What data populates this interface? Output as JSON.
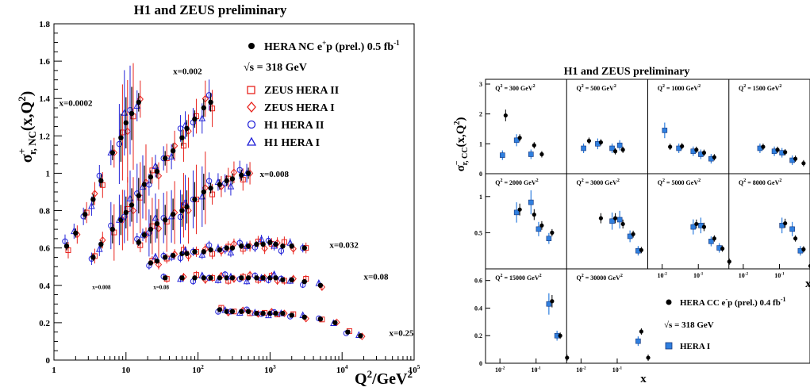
{
  "chart_data": [
    {
      "type": "scatter",
      "title": "H1 and ZEUS preliminary",
      "ylabel_main": "σ",
      "ylabel_sup": "+",
      "ylabel_sub": "r, NC",
      "ylabel_tail": "(x,Q",
      "ylabel_sup2": "2",
      "ylabel_close": ")",
      "xlabel_main": "Q",
      "xlabel_sup": "2",
      "xlabel_tail": "/GeV",
      "xlabel_sup2": "2",
      "xscale": "log",
      "xlim": [
        1,
        100000
      ],
      "ylim": [
        0,
        1.8
      ],
      "x_ticks": [
        {
          "v": 1,
          "b": "1",
          "e": ""
        },
        {
          "v": 10,
          "b": "10",
          "e": ""
        },
        {
          "v": 100,
          "b": "10",
          "e": "2"
        },
        {
          "v": 1000,
          "b": "10",
          "e": "3"
        },
        {
          "v": 10000,
          "b": "10",
          "e": "4"
        },
        {
          "v": 100000,
          "b": "10",
          "e": "5"
        }
      ],
      "y_ticks": [
        "0",
        "0.2",
        "0.4",
        "0.6",
        "0.8",
        "1",
        "1.2",
        "1.4",
        "1.6",
        "1.8"
      ],
      "legend_placement": "top-right",
      "legend": {
        "hera": {
          "pre": "HERA NC e",
          "sup": "+",
          "post": "p (prel.) 0.5 fb",
          "sup2": "-1"
        },
        "sqrt_s": "√s = 318 GeV",
        "zeus2": "ZEUS HERA II",
        "zeus1": "ZEUS HERA I",
        "h1_2": "H1 HERA II",
        "h1_1": "H1 HERA I"
      },
      "colors": {
        "hera": "#000000",
        "zeus": "#e8221c",
        "h1": "#2323d8"
      },
      "bin_labels": [
        {
          "text": "x=0.0002",
          "q2": 1.18,
          "y": 1.36
        },
        {
          "text": "x=0.002",
          "q2": 45,
          "y": 1.53
        },
        {
          "text": "x=0.008",
          "q2": 720,
          "y": 0.98
        },
        {
          "text": "x=0.032",
          "q2": 6700,
          "y": 0.6
        },
        {
          "text": "x=0.08",
          "q2": 20000,
          "y": 0.43
        },
        {
          "text": "x=0.25",
          "q2": 45000,
          "y": 0.13
        },
        {
          "text": "x=0.008",
          "q2": 3.4,
          "y": 0.38,
          "small": true
        },
        {
          "text": "x=0.08",
          "q2": 24,
          "y": 0.38,
          "small": true
        }
      ],
      "series": [
        {
          "name": "HERA NC e+p (prel.) 0.5 fb-1",
          "x_bin": "0.0002",
          "q2": [
            1.5,
            2,
            2.7,
            3.5,
            4.5,
            6.5,
            8.5,
            10,
            12,
            15
          ],
          "y": [
            0.61,
            0.68,
            0.78,
            0.86,
            0.96,
            1.11,
            1.19,
            1.27,
            1.32,
            1.38
          ]
        },
        {
          "name": "HERA NC e+p (prel.) 0.5 fb-1",
          "x_bin": "0.002",
          "q2": [
            3.5,
            4.5,
            6.5,
            8.5,
            10,
            12,
            15,
            18,
            22,
            27,
            35,
            45,
            60,
            70,
            90,
            120,
            150
          ],
          "y": [
            0.55,
            0.62,
            0.7,
            0.75,
            0.79,
            0.83,
            0.88,
            0.94,
            0.98,
            1.01,
            1.08,
            1.12,
            1.19,
            1.24,
            1.29,
            1.35,
            1.38
          ]
        },
        {
          "name": "HERA NC e+p (prel.) 0.5 fb-1",
          "x_bin": "0.008",
          "q2": [
            15,
            18,
            22,
            27,
            35,
            45,
            60,
            70,
            90,
            120,
            150,
            200,
            250,
            300,
            400,
            500
          ],
          "y": [
            0.63,
            0.67,
            0.7,
            0.73,
            0.75,
            0.78,
            0.8,
            0.82,
            0.86,
            0.9,
            0.92,
            0.94,
            0.96,
            0.97,
            0.99,
            1.0
          ]
        },
        {
          "name": "HERA NC e+p (prel.) 0.5 fb-1",
          "x_bin": "0.032",
          "q2": [
            22,
            27,
            35,
            45,
            60,
            70,
            90,
            120,
            150,
            200,
            250,
            300,
            400,
            500,
            650,
            800,
            1000,
            1200,
            1500,
            2000,
            3000
          ],
          "y": [
            0.52,
            0.53,
            0.55,
            0.56,
            0.57,
            0.57,
            0.58,
            0.58,
            0.59,
            0.59,
            0.6,
            0.6,
            0.61,
            0.61,
            0.62,
            0.62,
            0.63,
            0.62,
            0.61,
            0.61,
            0.6
          ]
        },
        {
          "name": "HERA NC e+p (prel.) 0.5 fb-1",
          "x_bin": "0.08",
          "q2": [
            35,
            60,
            90,
            120,
            150,
            200,
            250,
            300,
            400,
            500,
            650,
            800,
            1000,
            1200,
            1500,
            2000,
            3000,
            5000
          ],
          "y": [
            0.44,
            0.44,
            0.44,
            0.44,
            0.44,
            0.44,
            0.44,
            0.44,
            0.44,
            0.44,
            0.44,
            0.44,
            0.44,
            0.44,
            0.43,
            0.43,
            0.42,
            0.4
          ]
        },
        {
          "name": "HERA NC e+p (prel.) 0.5 fb-1",
          "x_bin": "0.25",
          "q2": [
            200,
            250,
            300,
            400,
            500,
            650,
            800,
            1000,
            1200,
            1500,
            2000,
            3000,
            5000,
            8000,
            12000,
            18000
          ],
          "y": [
            0.27,
            0.26,
            0.26,
            0.26,
            0.26,
            0.25,
            0.25,
            0.25,
            0.25,
            0.25,
            0.24,
            0.23,
            0.22,
            0.2,
            0.15,
            0.13
          ]
        }
      ]
    },
    {
      "type": "scatter",
      "title": "H1 and ZEUS preliminary",
      "ylabel_main": "σ",
      "ylabel_sup": "−",
      "ylabel_sub": "r, CC",
      "ylabel_tail": "(x,Q",
      "ylabel_sup2": "2",
      "ylabel_close": ")",
      "xlabel": "x",
      "xscale": "log",
      "xlim": [
        0.004,
        0.7
      ],
      "row_ticks": [
        {
          "ylim": [
            0,
            3
          ],
          "ticks": [
            "0",
            "1",
            "2",
            "3"
          ]
        },
        {
          "ylim": [
            0,
            1.25
          ],
          "ticks": [
            "0.5",
            "1"
          ]
        },
        {
          "ylim": [
            0,
            0.65
          ],
          "ticks": [
            "0",
            "0.2",
            "0.4",
            "0.6"
          ]
        }
      ],
      "x_ticks": [
        {
          "v": 0.01,
          "b": "10",
          "e": "-2"
        },
        {
          "v": 0.1,
          "b": "10",
          "e": "-1"
        }
      ],
      "legend": {
        "hera": {
          "pre": "HERA CC e",
          "sup": "-",
          "post": "p (prel.) 0.4 fb",
          "sup2": "-1"
        },
        "sqrt_s": "√s = 318 GeV",
        "hera1": "HERA I"
      },
      "colors": {
        "hera": "#000000",
        "hera1": "#2f7fdf"
      },
      "panels": [
        {
          "q2": "300",
          "row": 0,
          "col": 0,
          "hera": [
            [
              0.013,
              1.95
            ],
            [
              0.032,
              1.2
            ],
            [
              0.08,
              0.95
            ],
            [
              0.13,
              0.65
            ]
          ],
          "hera1": [
            [
              0.013,
              0.62
            ],
            [
              0.032,
              1.12
            ],
            [
              0.08,
              0.65
            ]
          ]
        },
        {
          "q2": "500",
          "row": 0,
          "col": 1,
          "hera": [
            [
              0.015,
              1.1
            ],
            [
              0.032,
              1.05
            ],
            [
              0.08,
              0.75
            ],
            [
              0.13,
              0.8
            ]
          ],
          "hera1": [
            [
              0.013,
              0.85
            ],
            [
              0.032,
              1.0
            ],
            [
              0.08,
              0.85
            ],
            [
              0.13,
              0.95
            ]
          ]
        },
        {
          "q2": "1000",
          "row": 0,
          "col": 2,
          "hera": [
            [
              0.015,
              0.9
            ],
            [
              0.032,
              0.92
            ],
            [
              0.08,
              0.8
            ],
            [
              0.13,
              0.7
            ],
            [
              0.25,
              0.55
            ]
          ],
          "hera1": [
            [
              0.013,
              1.45
            ],
            [
              0.032,
              0.85
            ],
            [
              0.08,
              0.75
            ],
            [
              0.13,
              0.65
            ],
            [
              0.25,
              0.5
            ]
          ]
        },
        {
          "q2": "1500",
          "row": 0,
          "col": 3,
          "hera": [
            [
              0.032,
              0.9
            ],
            [
              0.08,
              0.8
            ],
            [
              0.13,
              0.72
            ],
            [
              0.25,
              0.5
            ],
            [
              0.42,
              0.35
            ]
          ],
          "hera1": [
            [
              0.032,
              0.85
            ],
            [
              0.08,
              0.75
            ],
            [
              0.13,
              0.7
            ],
            [
              0.25,
              0.45
            ]
          ]
        },
        {
          "q2": "2000",
          "row": 1,
          "col": 0,
          "hera": [
            [
              0.032,
              0.82
            ],
            [
              0.08,
              0.75
            ],
            [
              0.13,
              0.6
            ],
            [
              0.25,
              0.5
            ]
          ],
          "hera1": [
            [
              0.032,
              0.78
            ],
            [
              0.08,
              0.92
            ],
            [
              0.13,
              0.55
            ],
            [
              0.25,
              0.42
            ]
          ]
        },
        {
          "q2": "3000",
          "row": 1,
          "col": 1,
          "hera": [
            [
              0.032,
              0.7
            ],
            [
              0.08,
              0.7
            ],
            [
              0.13,
              0.62
            ],
            [
              0.25,
              0.48
            ],
            [
              0.42,
              0.26
            ]
          ],
          "hera1": [
            [
              0.08,
              0.66
            ],
            [
              0.13,
              0.68
            ],
            [
              0.25,
              0.45
            ],
            [
              0.42,
              0.25
            ]
          ]
        },
        {
          "q2": "5000",
          "row": 1,
          "col": 2,
          "hera": [
            [
              0.08,
              0.62
            ],
            [
              0.13,
              0.58
            ],
            [
              0.25,
              0.42
            ],
            [
              0.42,
              0.28
            ],
            [
              0.65,
              0.1
            ]
          ],
          "hera1": [
            [
              0.08,
              0.58
            ],
            [
              0.13,
              0.6
            ],
            [
              0.25,
              0.38
            ],
            [
              0.42,
              0.29
            ]
          ]
        },
        {
          "q2": "8000",
          "row": 1,
          "col": 3,
          "hera": [
            [
              0.13,
              0.63
            ],
            [
              0.25,
              0.42
            ],
            [
              0.42,
              0.27
            ],
            [
              0.65,
              0.04
            ]
          ],
          "hera1": [
            [
              0.13,
              0.6
            ],
            [
              0.25,
              0.55
            ],
            [
              0.42,
              0.25
            ]
          ]
        },
        {
          "q2": "15000",
          "row": 2,
          "col": 0,
          "hera": [
            [
              0.25,
              0.45
            ],
            [
              0.42,
              0.2
            ],
            [
              0.65,
              0.04
            ]
          ],
          "hera1": [
            [
              0.25,
              0.43
            ],
            [
              0.42,
              0.2
            ]
          ]
        },
        {
          "q2": "30000",
          "row": 2,
          "col": 1,
          "hera": [
            [
              0.42,
              0.23
            ],
            [
              0.65,
              0.04
            ]
          ],
          "hera1": [
            [
              0.42,
              0.16
            ]
          ]
        }
      ]
    }
  ]
}
